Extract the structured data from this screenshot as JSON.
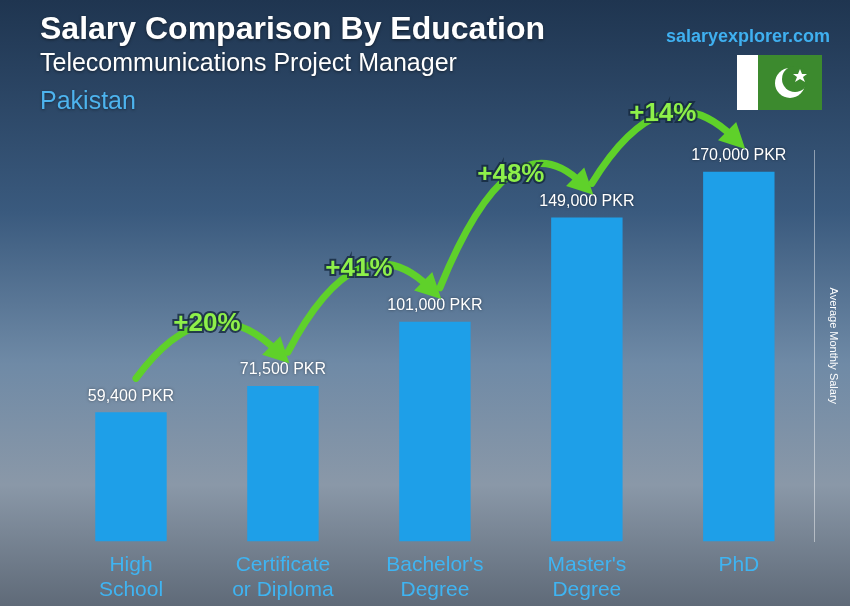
{
  "chart_data": {
    "type": "bar",
    "title": "Salary Comparison By Education",
    "subtitle": "Telecommunications Project Manager",
    "country": "Pakistan",
    "source": "salaryexplorer.com",
    "y_label": "Average Monthly Salary",
    "categories": [
      "High School",
      "Certificate or Diploma",
      "Bachelor's Degree",
      "Master's Degree",
      "PhD"
    ],
    "values": [
      59400,
      71500,
      101000,
      149000,
      170000
    ],
    "value_labels": [
      "59,400 PKR",
      "71,500 PKR",
      "101,000 PKR",
      "149,000 PKR",
      "170,000 PKR"
    ],
    "annotations": [
      "+20%",
      "+41%",
      "+48%",
      "+14%"
    ],
    "color": "#1e9fe8",
    "ylim": [
      0,
      180000
    ],
    "grid": false,
    "data_labels": true,
    "tick_labels": "x"
  }
}
